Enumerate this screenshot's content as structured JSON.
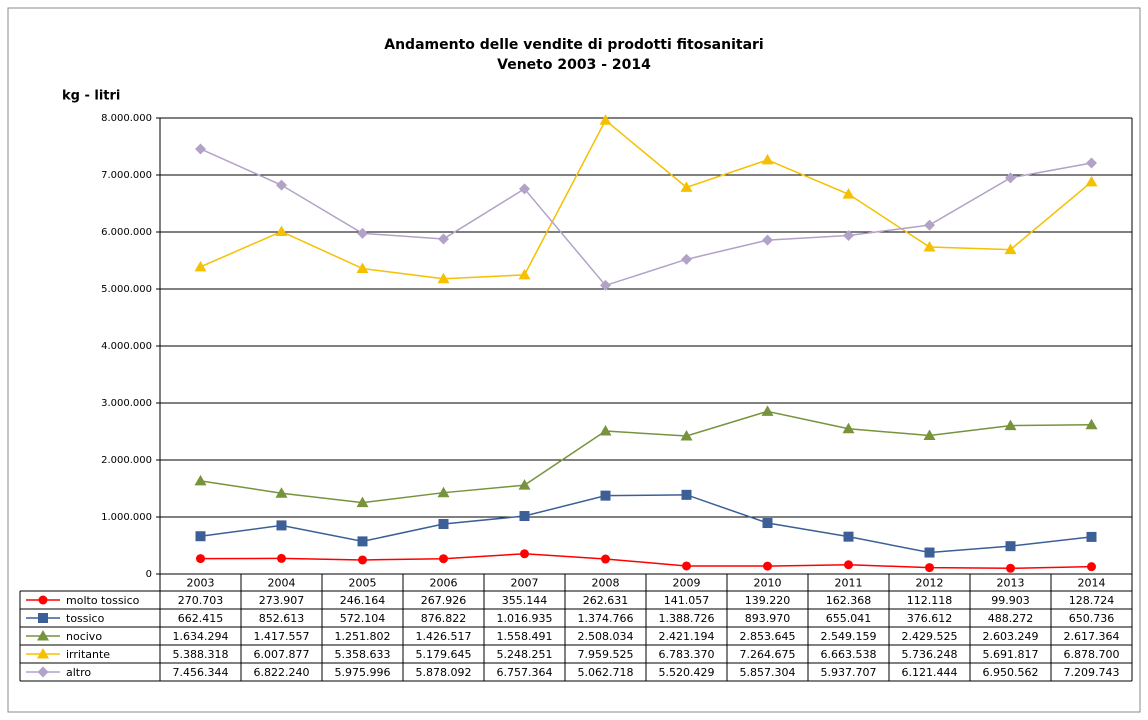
{
  "chart_data": {
    "type": "line",
    "title": "Andamento delle vendite di prodotti fitosanitari",
    "subtitle": "Veneto 2003 - 2014",
    "y_label": "kg - litri",
    "categories": [
      "2003",
      "2004",
      "2005",
      "2006",
      "2007",
      "2008",
      "2009",
      "2010",
      "2011",
      "2012",
      "2013",
      "2014"
    ],
    "ylim": [
      0,
      8000000
    ],
    "yticks": [
      0,
      {
        "value": 1000000,
        "label": "1.000.000"
      },
      {
        "value": 2000000,
        "label": "2.000.000"
      },
      {
        "value": 3000000,
        "label": "3.000.000"
      },
      {
        "value": 4000000,
        "label": "4.000.000"
      },
      {
        "value": 5000000,
        "label": "5.000.000"
      },
      {
        "value": 6000000,
        "label": "6.000.000"
      },
      {
        "value": 7000000,
        "label": "7.000.000"
      },
      {
        "value": 8000000,
        "label": "8.000.000"
      }
    ],
    "grid": true,
    "series": [
      {
        "name": "molto tossico",
        "color": "#ff0000",
        "marker": "circle",
        "values": [
          270703,
          273907,
          246164,
          267926,
          355144,
          262631,
          141057,
          139220,
          162368,
          112118,
          99903,
          128724
        ],
        "value_labels": [
          "270.703",
          "273.907",
          "246.164",
          "267.926",
          "355.144",
          "262.631",
          "141.057",
          "139.220",
          "162.368",
          "112.118",
          "99.903",
          "128.724"
        ]
      },
      {
        "name": "tossico",
        "color": "#3b5f96",
        "marker": "square",
        "values": [
          662415,
          852613,
          572104,
          876822,
          1016935,
          1374766,
          1388726,
          893970,
          655041,
          376612,
          488272,
          650736
        ],
        "value_labels": [
          "662.415",
          "852.613",
          "572.104",
          "876.822",
          "1.016.935",
          "1.374.766",
          "1.388.726",
          "893.970",
          "655.041",
          "376.612",
          "488.272",
          "650.736"
        ]
      },
      {
        "name": "nocivo",
        "color": "#77933c",
        "marker": "triangle",
        "values": [
          1634294,
          1417557,
          1251802,
          1426517,
          1558491,
          2508034,
          2421194,
          2853645,
          2549159,
          2429525,
          2603249,
          2617364
        ],
        "value_labels": [
          "1.634.294",
          "1.417.557",
          "1.251.802",
          "1.426.517",
          "1.558.491",
          "2.508.034",
          "2.421.194",
          "2.853.645",
          "2.549.159",
          "2.429.525",
          "2.603.249",
          "2.617.364"
        ]
      },
      {
        "name": "irritante",
        "color": "#f5c000",
        "marker": "triangle",
        "values": [
          5388318,
          6007877,
          5358633,
          5179645,
          5248251,
          7959525,
          6783370,
          7264675,
          6663538,
          5736248,
          5691817,
          6878700
        ],
        "value_labels": [
          "5.388.318",
          "6.007.877",
          "5.358.633",
          "5.179.645",
          "5.248.251",
          "7.959.525",
          "6.783.370",
          "7.264.675",
          "6.663.538",
          "5.736.248",
          "5.691.817",
          "6.878.700"
        ]
      },
      {
        "name": "altro",
        "color": "#b3a2c7",
        "marker": "diamond",
        "values": [
          7456344,
          6822240,
          5975996,
          5878092,
          6757364,
          5062718,
          5520429,
          5857304,
          5937707,
          6121444,
          6950562,
          7209743
        ],
        "value_labels": [
          "7.456.344",
          "6.822.240",
          "5.975.996",
          "5.878.092",
          "6.757.364",
          "5.062.718",
          "5.520.429",
          "5.857.304",
          "5.937.707",
          "6.121.444",
          "6.950.562",
          "7.209.743"
        ]
      }
    ]
  }
}
